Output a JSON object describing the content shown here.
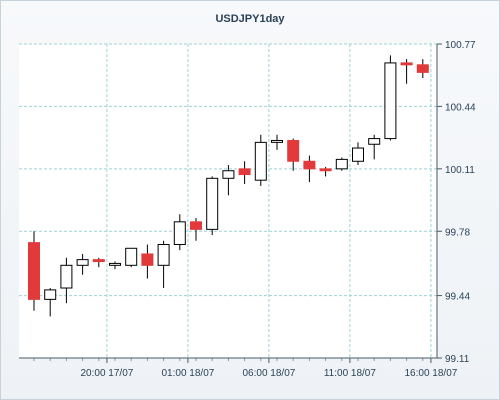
{
  "chart_data": {
    "type": "candlestick",
    "title": "USDJPY1day",
    "y_ticks": [
      99.11,
      99.44,
      99.78,
      100.11,
      100.44,
      100.77
    ],
    "ylim": [
      99.11,
      100.77
    ],
    "x_ticks": [
      {
        "index": 4.5,
        "label": "20:00 17/07"
      },
      {
        "index": 9.5,
        "label": "01:00 18/07"
      },
      {
        "index": 14.5,
        "label": "06:00 18/07"
      },
      {
        "index": 19.5,
        "label": "11:00 18/07"
      },
      {
        "index": 24.5,
        "label": "16:00 18/07"
      }
    ],
    "candles": [
      {
        "o": 99.72,
        "h": 99.78,
        "l": 99.36,
        "c": 99.42
      },
      {
        "o": 99.42,
        "h": 99.48,
        "l": 99.33,
        "c": 99.47
      },
      {
        "o": 99.48,
        "h": 99.64,
        "l": 99.4,
        "c": 99.6
      },
      {
        "o": 99.6,
        "h": 99.66,
        "l": 99.55,
        "c": 99.63
      },
      {
        "o": 99.63,
        "h": 99.64,
        "l": 99.59,
        "c": 99.62
      },
      {
        "o": 99.6,
        "h": 99.62,
        "l": 99.58,
        "c": 99.61
      },
      {
        "o": 99.6,
        "h": 99.69,
        "l": 99.59,
        "c": 99.69
      },
      {
        "o": 99.66,
        "h": 99.71,
        "l": 99.53,
        "c": 99.6
      },
      {
        "o": 99.6,
        "h": 99.73,
        "l": 99.48,
        "c": 99.71
      },
      {
        "o": 99.71,
        "h": 99.87,
        "l": 99.68,
        "c": 99.83
      },
      {
        "o": 99.83,
        "h": 99.85,
        "l": 99.73,
        "c": 99.79
      },
      {
        "o": 99.79,
        "h": 100.07,
        "l": 99.76,
        "c": 100.06
      },
      {
        "o": 100.06,
        "h": 100.13,
        "l": 99.97,
        "c": 100.1
      },
      {
        "o": 100.11,
        "h": 100.15,
        "l": 100.03,
        "c": 100.08
      },
      {
        "o": 100.05,
        "h": 100.29,
        "l": 100.02,
        "c": 100.25
      },
      {
        "o": 100.25,
        "h": 100.29,
        "l": 100.21,
        "c": 100.26
      },
      {
        "o": 100.26,
        "h": 100.27,
        "l": 100.1,
        "c": 100.15
      },
      {
        "o": 100.15,
        "h": 100.18,
        "l": 100.04,
        "c": 100.11
      },
      {
        "o": 100.11,
        "h": 100.12,
        "l": 100.07,
        "c": 100.1
      },
      {
        "o": 100.11,
        "h": 100.17,
        "l": 100.1,
        "c": 100.16
      },
      {
        "o": 100.15,
        "h": 100.25,
        "l": 100.13,
        "c": 100.22
      },
      {
        "o": 100.24,
        "h": 100.29,
        "l": 100.16,
        "c": 100.27
      },
      {
        "o": 100.27,
        "h": 100.71,
        "l": 100.26,
        "c": 100.67
      },
      {
        "o": 100.67,
        "h": 100.69,
        "l": 100.56,
        "c": 100.66
      },
      {
        "o": 100.66,
        "h": 100.69,
        "l": 100.59,
        "c": 100.62
      }
    ],
    "grid": true,
    "colors": {
      "bull_fill": "#ffffff",
      "bear_fill": "#e23a3a",
      "candle_outline": "#000000",
      "grid": "#9fd1d6",
      "axis_text": "#2a4257",
      "panel_bg": "#ffffff"
    }
  }
}
